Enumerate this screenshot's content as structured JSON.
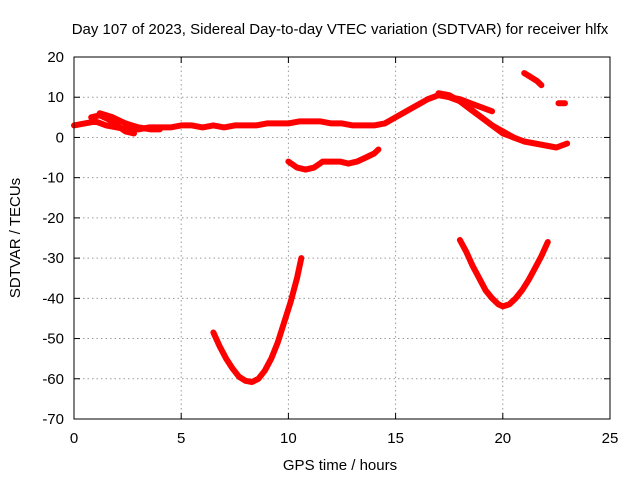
{
  "chart_data": {
    "type": "line",
    "title": "Day 107 of 2023, Sidereal Day-to-day VTEC variation (SDTVAR) for receiver hlfx",
    "xlabel": "GPS time / hours",
    "ylabel": "SDTVAR / TECUs",
    "xlim": [
      0,
      25
    ],
    "ylim": [
      -70,
      20
    ],
    "xticks": [
      0,
      5,
      10,
      15,
      20,
      25
    ],
    "yticks": [
      -70,
      -60,
      -50,
      -40,
      -30,
      -20,
      -10,
      0,
      10,
      20
    ],
    "grid": true,
    "series_color": "#ff0000",
    "series": [
      {
        "name": "arc-1",
        "x": [
          0.0,
          0.5,
          1.0,
          1.5,
          2.0,
          2.5,
          3.0,
          3.5,
          4.0,
          4.5,
          5.0,
          5.5,
          6.0,
          6.5,
          7.0,
          7.5,
          8.0,
          8.5,
          9.0,
          9.5,
          10.0,
          10.5,
          11.0,
          11.5,
          12.0,
          12.5,
          13.0,
          13.5,
          14.0,
          14.5,
          15.0,
          15.5,
          16.0,
          16.5,
          17.0,
          17.5,
          18.0,
          18.5,
          19.0,
          19.5,
          20.0,
          20.5,
          21.0,
          21.5,
          22.0,
          22.5,
          23.0
        ],
        "y": [
          3,
          3.5,
          4,
          3,
          2.5,
          2,
          2,
          2.5,
          2.5,
          2.5,
          3,
          3,
          2.5,
          3,
          2.5,
          3,
          3,
          3,
          3.5,
          3.5,
          3.5,
          4,
          4,
          4,
          3.5,
          3.5,
          3,
          3,
          3,
          3.5,
          5,
          6.5,
          8,
          9.5,
          10.5,
          10,
          9,
          7,
          5,
          3,
          1,
          0,
          -1,
          -1.5,
          -2,
          -2.5,
          -1.5
        ]
      },
      {
        "name": "arc-2",
        "x": [
          0.8,
          1.2,
          1.6,
          2.0,
          2.4,
          2.8
        ],
        "y": [
          5,
          5.5,
          4.5,
          3,
          1.5,
          1
        ]
      },
      {
        "name": "arc-3",
        "x": [
          1.2,
          1.8,
          2.4,
          3.0,
          3.6,
          4.0
        ],
        "y": [
          6,
          5,
          3.5,
          2.5,
          2,
          2
        ]
      },
      {
        "name": "arc-4",
        "x": [
          10.0,
          10.4,
          10.8,
          11.2,
          11.6,
          12.0,
          12.4,
          12.8,
          13.2,
          13.6,
          14.0,
          14.2
        ],
        "y": [
          -6,
          -7.5,
          -8,
          -7.5,
          -6,
          -6,
          -6,
          -6.5,
          -6,
          -5,
          -4,
          -3
        ]
      },
      {
        "name": "arc-5",
        "x": [
          6.5,
          6.8,
          7.1,
          7.4,
          7.7,
          8.0,
          8.3,
          8.6,
          8.9,
          9.2,
          9.5,
          9.8,
          10.1,
          10.4,
          10.6
        ],
        "y": [
          -48.5,
          -52,
          -55,
          -57.5,
          -59.5,
          -60.5,
          -60.8,
          -60,
          -58,
          -55,
          -51,
          -46,
          -41,
          -35,
          -30
        ]
      },
      {
        "name": "arc-6",
        "x": [
          18.0,
          18.3,
          18.6,
          18.9,
          19.2,
          19.5,
          19.8,
          20.0,
          20.3,
          20.6,
          20.9,
          21.2,
          21.5,
          21.8,
          22.1
        ],
        "y": [
          -25.5,
          -28.5,
          -32,
          -35,
          -38,
          -40,
          -41.5,
          -42,
          -41.5,
          -40,
          -38,
          -35.5,
          -32.5,
          -29.5,
          -26
        ]
      },
      {
        "name": "arc-7",
        "x": [
          17.0,
          17.5,
          18.0,
          18.5,
          19.0,
          19.5,
          20.0,
          20.5
        ],
        "y": [
          11,
          10.5,
          9,
          7,
          5,
          3,
          1.5,
          0
        ]
      },
      {
        "name": "arc-8",
        "x": [
          17.5,
          18.0,
          18.5,
          19.0,
          19.5
        ],
        "y": [
          10,
          9.5,
          8.5,
          7.5,
          6.5
        ]
      },
      {
        "name": "arc-9",
        "x": [
          21.0,
          21.3,
          21.6,
          21.8
        ],
        "y": [
          16,
          15,
          14,
          13
        ]
      },
      {
        "name": "arc-10",
        "x": [
          22.6,
          22.8,
          22.9
        ],
        "y": [
          8.5,
          8.5,
          8.5
        ]
      }
    ]
  }
}
